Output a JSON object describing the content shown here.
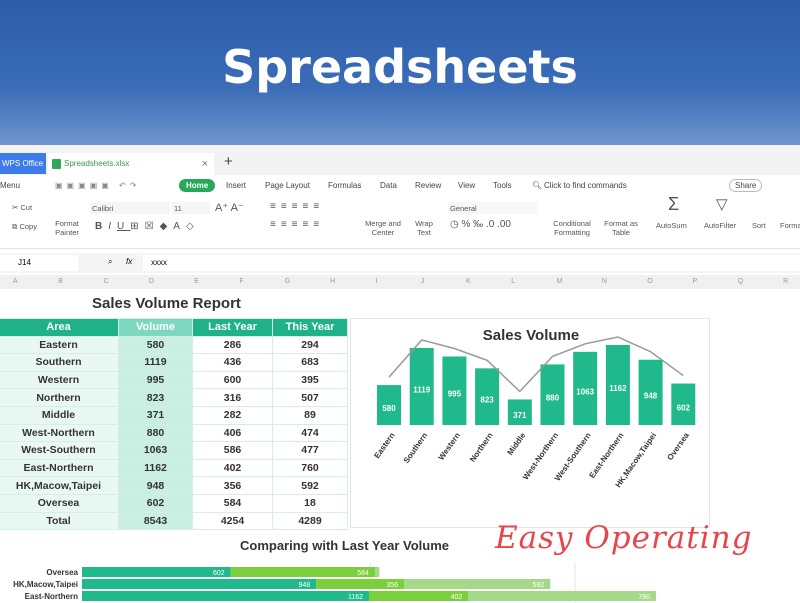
{
  "banner": {
    "title": "Spreadsheets"
  },
  "tabs": {
    "app": "WPS Office",
    "file": "Spreadsheets.xlsx"
  },
  "menu": {
    "items": [
      "Menu",
      "Home",
      "Insert",
      "Page Layout",
      "Formulas",
      "Data",
      "Review",
      "View",
      "Tools"
    ],
    "search": "Click to find commands",
    "share": "Share"
  },
  "ribbon": {
    "cut": "Cut",
    "copy": "Copy",
    "format_painter": "Format Painter",
    "font": "Calibri",
    "size": "11",
    "merge": "Merge and Center",
    "wrap": "Wrap Text",
    "number_format": "General",
    "conditional": "Conditional Formatting",
    "format_table": "Format as Table",
    "autosum": "AutoSum",
    "autofilter": "AutoFilter",
    "sort": "Sort",
    "format": "Format"
  },
  "formula_bar": {
    "cell": "J14",
    "fx": "fx",
    "value": "xxxx"
  },
  "columns": [
    "A",
    "B",
    "C",
    "D",
    "E",
    "F",
    "G",
    "H",
    "I",
    "J",
    "K",
    "L",
    "M",
    "N",
    "O",
    "P",
    "Q",
    "R"
  ],
  "report": {
    "title": "Sales Volume Report",
    "headers": [
      "Area",
      "Volume",
      "Last Year",
      "This Year"
    ],
    "rows": [
      [
        "Eastern",
        "580",
        "286",
        "294"
      ],
      [
        "Southern",
        "1119",
        "436",
        "683"
      ],
      [
        "Western",
        "995",
        "600",
        "395"
      ],
      [
        "Northern",
        "823",
        "316",
        "507"
      ],
      [
        "Middle",
        "371",
        "282",
        "89"
      ],
      [
        "West-Northern",
        "880",
        "406",
        "474"
      ],
      [
        "West-Southern",
        "1063",
        "586",
        "477"
      ],
      [
        "East-Northern",
        "1162",
        "402",
        "760"
      ],
      [
        "HK,Macow,Taipei",
        "948",
        "356",
        "592"
      ],
      [
        "Oversea",
        "602",
        "584",
        "18"
      ],
      [
        "Total",
        "8543",
        "4254",
        "4289"
      ]
    ]
  },
  "chart_data": [
    {
      "type": "bar",
      "title": "Sales Volume",
      "categories": [
        "Eastern",
        "Southern",
        "Western",
        "Northern",
        "Middle",
        "West-Northern",
        "West-Southern",
        "East-Northern",
        "HK,Macow,Taipei",
        "Oversea"
      ],
      "values": [
        580,
        1119,
        995,
        823,
        371,
        880,
        1063,
        1162,
        948,
        602
      ],
      "color": "#1fb98c",
      "trendline": true
    },
    {
      "type": "bar",
      "orientation": "horizontal",
      "stacked": true,
      "title": "Comparing with Last Year Volume",
      "categories": [
        "Oversea",
        "HK,Macow,Taipei",
        "East-Northern"
      ],
      "series": [
        {
          "values": [
            602,
            948,
            1162
          ]
        },
        {
          "values": [
            584,
            356,
            402
          ]
        },
        {
          "values": [
            18,
            592,
            760
          ]
        }
      ],
      "colors": [
        "#1fb98c",
        "#7ccf3c",
        "#a6d88a"
      ]
    }
  ],
  "annotation": "Easy Operating"
}
